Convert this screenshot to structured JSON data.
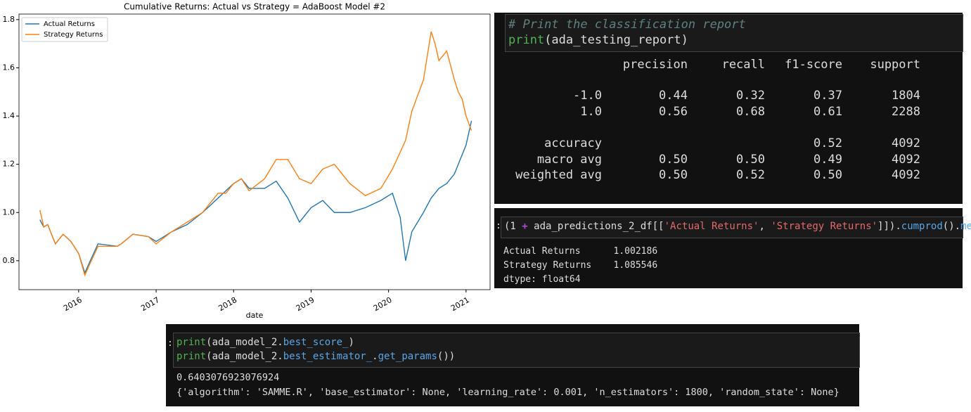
{
  "chart_data": {
    "type": "line",
    "title": "Cumulative Returns: Actual vs Strategy = AdaBoost Model #2",
    "x_label": "date",
    "x": [
      2015.5,
      2015.55,
      2015.6,
      2015.7,
      2015.8,
      2015.9,
      2016.0,
      2016.08,
      2016.15,
      2016.25,
      2016.5,
      2016.55,
      2016.7,
      2016.9,
      2017.0,
      2017.2,
      2017.4,
      2017.6,
      2017.8,
      2017.9,
      2018.0,
      2018.1,
      2018.2,
      2018.4,
      2018.55,
      2018.7,
      2018.85,
      2019.0,
      2019.15,
      2019.3,
      2019.5,
      2019.7,
      2019.9,
      2020.05,
      2020.15,
      2020.22,
      2020.3,
      2020.45,
      2020.55,
      2020.6,
      2020.65,
      2020.75,
      2020.85,
      2020.9,
      2020.95,
      2021.0,
      2021.07
    ],
    "series": [
      {
        "name": "Actual Returns",
        "color": "#1f77b4",
        "values": [
          0.97,
          0.94,
          0.95,
          0.87,
          0.91,
          0.88,
          0.83,
          0.75,
          0.8,
          0.87,
          0.86,
          0.87,
          0.91,
          0.9,
          0.88,
          0.92,
          0.95,
          1.0,
          1.06,
          1.09,
          1.12,
          1.14,
          1.1,
          1.1,
          1.13,
          1.06,
          0.96,
          1.02,
          1.05,
          1.0,
          1.0,
          1.02,
          1.05,
          1.08,
          0.98,
          0.8,
          0.92,
          1.0,
          1.06,
          1.08,
          1.1,
          1.12,
          1.16,
          1.2,
          1.24,
          1.28,
          1.38
        ]
      },
      {
        "name": "Strategy Returns",
        "color": "#ff7f0e",
        "values": [
          1.01,
          0.94,
          0.95,
          0.87,
          0.91,
          0.88,
          0.83,
          0.74,
          0.79,
          0.86,
          0.86,
          0.87,
          0.91,
          0.9,
          0.87,
          0.92,
          0.96,
          1.0,
          1.08,
          1.08,
          1.12,
          1.14,
          1.09,
          1.14,
          1.22,
          1.22,
          1.14,
          1.12,
          1.18,
          1.2,
          1.12,
          1.07,
          1.1,
          1.18,
          1.25,
          1.3,
          1.42,
          1.55,
          1.75,
          1.7,
          1.63,
          1.67,
          1.55,
          1.5,
          1.47,
          1.4,
          1.34
        ]
      }
    ],
    "xlim": [
      2015.23,
      2021.31
    ],
    "xticks": [
      2016,
      2017,
      2018,
      2019,
      2020,
      2021
    ],
    "ylim": [
      0.68,
      1.823
    ],
    "yticks": [
      0.8,
      {
        "value": 1,
        "label": "1.0"
      },
      1.2,
      1.4,
      1.6,
      1.8
    ],
    "legend": "upper left"
  },
  "report_cell": {
    "input": [
      "# Print the classification report",
      "print",
      "(ada_testing_report)"
    ],
    "table": {
      "columns": [
        "precision",
        "recall",
        "f1-score",
        "support"
      ],
      "rows": [
        [
          "-1.0",
          "0.44",
          "0.32",
          "0.37",
          "1804"
        ],
        [
          "1.0",
          "0.56",
          "0.68",
          "0.61",
          "2288"
        ],
        [
          "accuracy",
          null,
          null,
          "0.52",
          "4092"
        ],
        [
          "macro avg",
          "0.50",
          "0.50",
          "0.49",
          "4092"
        ],
        [
          "weighted avg",
          "0.50",
          "0.52",
          "0.50",
          "4092"
        ]
      ]
    }
  },
  "cumprod_cell": {
    "prompt": ":",
    "input": [
      "(1 ",
      "+",
      " ada_predictions_2_df[[",
      "'Actual Returns'",
      ", ",
      "'Strategy Returns'",
      "]]).",
      "cumprod",
      "().",
      "mean",
      "()"
    ],
    "output": [
      "Actual Returns      1.002186",
      "Strategy Returns    1.085546",
      "dtype: float64"
    ]
  },
  "params_cell": {
    "prompt": ":",
    "input": [
      [
        "print",
        "(ada_model_2.",
        "best_score_",
        ")"
      ],
      [
        "print",
        "(ada_model_2.",
        "best_estimator_",
        ".",
        "get_params",
        "())"
      ]
    ],
    "output": [
      "0.6403076923076924",
      "{'algorithm': 'SAMME.R', 'base_estimator': None, 'learning_rate': 0.001, 'n_estimators': 1800, 'random_state': None}"
    ]
  }
}
